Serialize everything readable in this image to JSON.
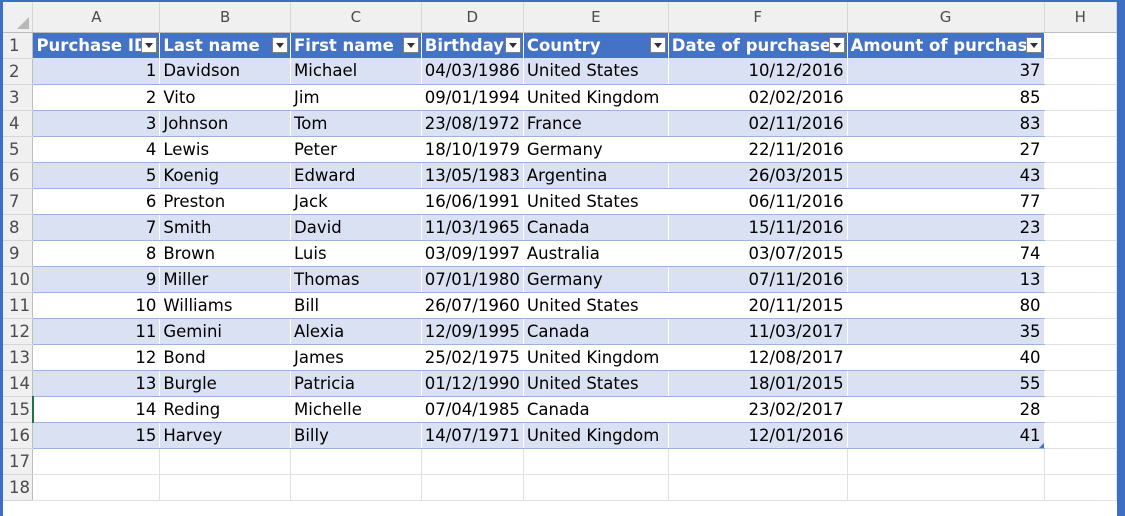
{
  "columns": [
    "A",
    "B",
    "C",
    "D",
    "E",
    "F",
    "G",
    "H"
  ],
  "row_numbers": [
    "1",
    "2",
    "3",
    "4",
    "5",
    "6",
    "7",
    "8",
    "9",
    "10",
    "11",
    "12",
    "13",
    "14",
    "15",
    "16",
    "17",
    "18"
  ],
  "table": {
    "headers": [
      "Purchase ID",
      "Last name",
      "First name",
      "Birthday",
      "Country",
      "Date of purchase",
      "Amount of purchase"
    ],
    "rows": [
      [
        "1",
        "Davidson",
        "Michael",
        "04/03/1986",
        "United States",
        "10/12/2016",
        "37"
      ],
      [
        "2",
        "Vito",
        "Jim",
        "09/01/1994",
        "United Kingdom",
        "02/02/2016",
        "85"
      ],
      [
        "3",
        "Johnson",
        "Tom",
        "23/08/1972",
        "France",
        "02/11/2016",
        "83"
      ],
      [
        "4",
        "Lewis",
        "Peter",
        "18/10/1979",
        "Germany",
        "22/11/2016",
        "27"
      ],
      [
        "5",
        "Koenig",
        "Edward",
        "13/05/1983",
        "Argentina",
        "26/03/2015",
        "43"
      ],
      [
        "6",
        "Preston",
        "Jack",
        "16/06/1991",
        "United States",
        "06/11/2016",
        "77"
      ],
      [
        "7",
        "Smith",
        "David",
        "11/03/1965",
        "Canada",
        "15/11/2016",
        "23"
      ],
      [
        "8",
        "Brown",
        "Luis",
        "03/09/1997",
        "Australia",
        "03/07/2015",
        "74"
      ],
      [
        "9",
        "Miller",
        "Thomas",
        "07/01/1980",
        "Germany",
        "07/11/2016",
        "13"
      ],
      [
        "10",
        "Williams",
        "Bill",
        "26/07/1960",
        "United States",
        "20/11/2015",
        "80"
      ],
      [
        "11",
        "Gemini",
        "Alexia",
        "12/09/1995",
        "Canada",
        "11/03/2017",
        "35"
      ],
      [
        "12",
        "Bond",
        "James",
        "25/02/1975",
        "United Kingdom",
        "12/08/2017",
        "40"
      ],
      [
        "13",
        "Burgle",
        "Patricia",
        "01/12/1990",
        "United States",
        "18/01/2015",
        "55"
      ],
      [
        "14",
        "Reding",
        "Michelle",
        "07/04/1985",
        "Canada",
        "23/02/2017",
        "28"
      ],
      [
        "15",
        "Harvey",
        "Billy",
        "14/07/1971",
        "United Kingdom",
        "12/01/2016",
        "41"
      ]
    ]
  },
  "selected_row": "15",
  "colors": {
    "table_header": "#4472c4",
    "band": "#d9e1f2",
    "selection_accent": "#217346",
    "window_frame": "#3c6fc4"
  },
  "icons": {
    "filter_dropdown": "filter-dropdown-icon",
    "select_all": "select-all-icon"
  }
}
